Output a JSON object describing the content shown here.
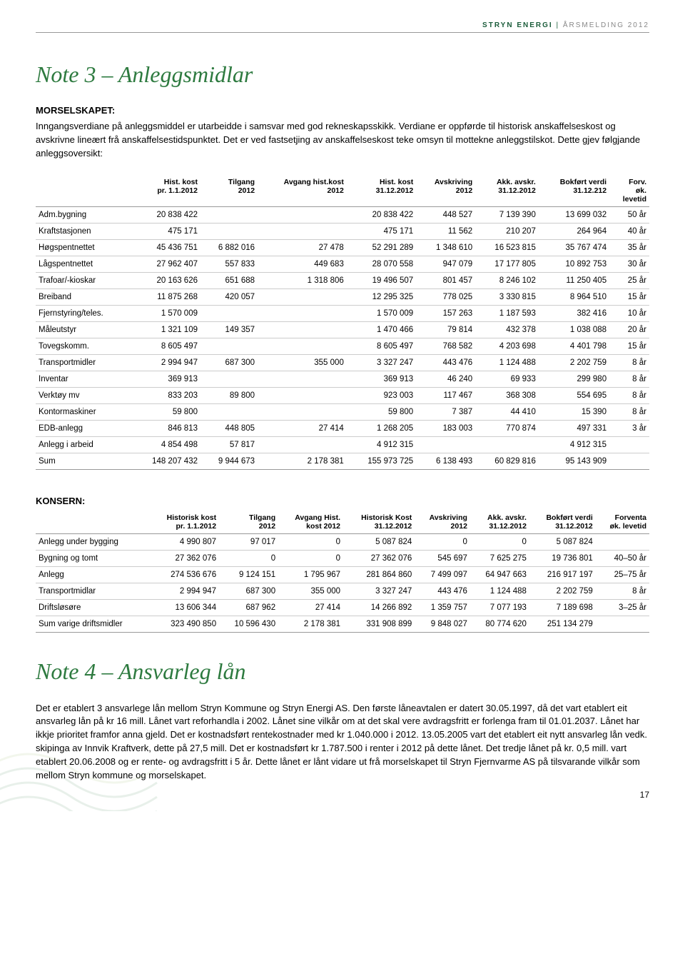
{
  "header": {
    "company": "STRYN ENERGI",
    "divider": " | ",
    "report": "ÅRSMELDING 2012"
  },
  "note3": {
    "title": "Note 3 – Anleggsmidlar",
    "section_label": "MORSELSKAPET:",
    "intro": "Inngangsverdiane på anleggsmiddel er utarbeidde i samsvar med god rekneskapsskikk. Verdiane er oppførde til historisk anskaffelseskost og avskrivne lineært frå anskaffelsestidspunktet. Det er ved fastsetjing av anskaffelseskost teke omsyn til mottekne anleggstilskot. Dette gjev følgjande anleggsoversikt:",
    "table1": {
      "headers": [
        "",
        "Hist. kost\npr. 1.1.2012",
        "Tilgang\n2012",
        "Avgang hist.kost\n2012",
        "Hist. kost\n31.12.2012",
        "Avskriving\n2012",
        "Akk. avskr.\n31.12.2012",
        "Bokført verdi\n31.12.212",
        "Forv.\nøk.\nlevetid"
      ],
      "rows": [
        [
          "Adm.bygning",
          "20 838 422",
          "",
          "",
          "20 838 422",
          "448 527",
          "7 139 390",
          "13 699 032",
          "50 år"
        ],
        [
          "Kraftstasjonen",
          "475 171",
          "",
          "",
          "475 171",
          "11 562",
          "210 207",
          "264 964",
          "40 år"
        ],
        [
          "Høgspentnettet",
          "45 436 751",
          "6 882 016",
          "27 478",
          "52 291 289",
          "1 348 610",
          "16 523 815",
          "35 767 474",
          "35 år"
        ],
        [
          "Lågspentnettet",
          "27 962 407",
          "557 833",
          "449 683",
          "28 070 558",
          "947 079",
          "17 177 805",
          "10 892 753",
          "30 år"
        ],
        [
          "Trafoar/-kioskar",
          "20 163 626",
          "651 688",
          "1 318 806",
          "19 496 507",
          "801 457",
          "8 246 102",
          "11 250 405",
          "25 år"
        ],
        [
          "Breiband",
          "11 875 268",
          "420 057",
          "",
          "12 295 325",
          "778 025",
          "3 330 815",
          "8 964 510",
          "15 år"
        ],
        [
          "Fjernstyring/teles.",
          "1 570 009",
          "",
          "",
          "1 570 009",
          "157 263",
          "1 187 593",
          "382 416",
          "10 år"
        ],
        [
          "Måleutstyr",
          "1 321 109",
          "149 357",
          "",
          "1 470 466",
          "79 814",
          "432 378",
          "1 038 088",
          "20 år"
        ],
        [
          "Tovegskomm.",
          "8 605 497",
          "",
          "",
          "8 605 497",
          "768 582",
          "4 203 698",
          "4 401 798",
          "15 år"
        ],
        [
          "Transportmidler",
          "2 994 947",
          "687 300",
          "355 000",
          "3 327 247",
          "443 476",
          "1 124 488",
          "2 202 759",
          "8 år"
        ],
        [
          "Inventar",
          "369 913",
          "",
          "",
          "369 913",
          "46 240",
          "69 933",
          "299 980",
          "8 år"
        ],
        [
          "Verktøy mv",
          "833 203",
          "89 800",
          "",
          "923 003",
          "117 467",
          "368 308",
          "554 695",
          "8 år"
        ],
        [
          "Kontormaskiner",
          "59 800",
          "",
          "",
          "59 800",
          "7 387",
          "44 410",
          "15 390",
          "8 år"
        ],
        [
          "EDB-anlegg",
          "846 813",
          "448 805",
          "27 414",
          "1 268 205",
          "183 003",
          "770 874",
          "497 331",
          "3 år"
        ],
        [
          "Anlegg i arbeid",
          "4 854 498",
          "57 817",
          "",
          "4 912 315",
          "",
          "",
          "4 912 315",
          ""
        ],
        [
          "Sum",
          "148 207 432",
          "9 944 673",
          "2 178 381",
          "155 973 725",
          "6 138 493",
          "60 829 816",
          "95 143 909",
          ""
        ]
      ]
    },
    "konsern_label": "KONSERN:",
    "table2": {
      "headers": [
        "",
        "Historisk kost\npr. 1.1.2012",
        "Tilgang\n2012",
        "Avgang Hist.\nkost 2012",
        "Historisk Kost\n31.12.2012",
        "Avskriving\n2012",
        "Akk. avskr.\n31.12.2012",
        "Bokført verdi\n31.12.2012",
        "Forventa\nøk. levetid"
      ],
      "rows": [
        [
          "Anlegg under bygging",
          "4 990 807",
          "97 017",
          "0",
          "5 087 824",
          "0",
          "0",
          "5 087 824",
          ""
        ],
        [
          "Bygning og tomt",
          "27 362 076",
          "0",
          "0",
          "27 362 076",
          "545 697",
          "7 625 275",
          "19 736 801",
          "40–50 år"
        ],
        [
          "Anlegg",
          "274 536 676",
          "9 124 151",
          "1 795 967",
          "281 864 860",
          "7 499 097",
          "64 947 663",
          "216 917 197",
          "25–75 år"
        ],
        [
          "Transportmidlar",
          "2 994 947",
          "687 300",
          "355 000",
          "3 327 247",
          "443 476",
          "1 124 488",
          "2 202 759",
          "8 år"
        ],
        [
          "Driftsløsøre",
          "13 606 344",
          "687 962",
          "27 414",
          "14 266 892",
          "1 359 757",
          "7 077 193",
          "7 189 698",
          "3–25 år"
        ],
        [
          "Sum varige driftsmidler",
          "323 490 850",
          "10 596 430",
          "2 178 381",
          "331 908 899",
          "9 848 027",
          "80 774 620",
          "251 134 279",
          ""
        ]
      ]
    }
  },
  "note4": {
    "title": "Note 4 – Ansvarleg lån",
    "body": "Det er etablert 3 ansvarlege lån mellom Stryn Kommune og Stryn Energi AS. Den første låneavtalen er datert 30.05.1997, då det vart etablert eit ansvarleg lån på kr 16 mill. Lånet vart reforhandla i 2002. Lånet sine vilkår om at det skal vere avdragsfritt er forlenga fram til 01.01.2037. Lånet har ikkje prioritet framfor anna gjeld. Det er kostnadsført rentekostnader med kr 1.040.000 i 2012. 13.05.2005 vart det etablert eit nytt ansvarleg lån vedk. skipinga av Innvik Kraftverk, dette på 27,5 mill. Det er kostnadsført kr 1.787.500 i renter i 2012 på dette lånet. Det tredje lånet på kr. 0,5 mill. vart etablert 20.06.2008 og er rente- og avdragsfritt i 5 år. Dette lånet er lånt vidare ut frå morselskapet til Stryn Fjernvarme AS på tilsvarande vilkår som mellom Stryn kommune og morselskapet."
  },
  "page_number": "17",
  "styling": {
    "title_color": "#2d7a3f",
    "header_color": "#1a5c3a",
    "border_color": "#999999",
    "row_border_color": "#cccccc",
    "body_font_size": 13,
    "table_font_size": 11.5,
    "title_font_size": 32
  }
}
